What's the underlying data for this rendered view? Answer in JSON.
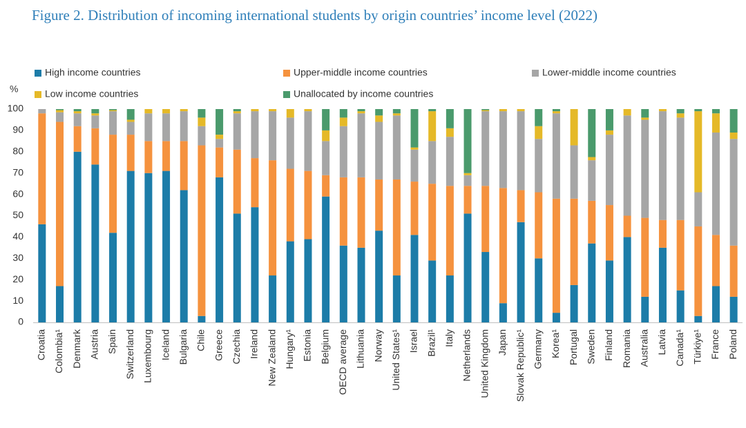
{
  "chart_data": {
    "type": "stacked_bar",
    "title": "Figure 2. Distribution of incoming international students by origin countries’ income level (2022)",
    "y_label": "%",
    "categories": [
      "Croatia",
      "Colombia¹",
      "Denmark",
      "Austria",
      "Spain",
      "Switzerland",
      "Luxembourg",
      "Iceland",
      "Bulgaria",
      "Chile",
      "Greece",
      "Czechia",
      "Ireland",
      "New Zealand",
      "Hungary¹",
      "Estonia",
      "Belgium",
      "OECD average",
      "Lithuania",
      "Norway",
      "United States¹",
      "Israel",
      "Brazil¹",
      "Italy",
      "Netherlands",
      "United Kingdom",
      "Japan",
      "Slovak Republic¹",
      "Germany",
      "Korea¹",
      "Portugal",
      "Sweden",
      "Finland",
      "Romania",
      "Australia",
      "Latvia",
      "Canada¹",
      "Türkiye¹",
      "France",
      "Poland"
    ],
    "series": [
      {
        "name": "High income countries",
        "color": "#1c7ca8",
        "values": [
          46,
          17,
          80,
          74,
          42,
          71,
          70,
          71,
          62,
          3,
          68,
          51,
          54,
          22,
          38,
          39,
          59,
          36,
          35,
          43,
          22,
          41,
          29,
          22,
          51,
          33,
          9,
          47,
          30,
          4.5,
          17.5,
          37,
          29,
          40,
          12,
          35,
          15,
          3,
          17,
          12
        ]
      },
      {
        "name": "Upper-middle income countries",
        "color": "#f5923e",
        "values": [
          52,
          77,
          12,
          17,
          46,
          17,
          15,
          14,
          23,
          80,
          14,
          30,
          23,
          54,
          34,
          32,
          10,
          32,
          33,
          24,
          45,
          25,
          36,
          42,
          13,
          31,
          54,
          15,
          31,
          53.5,
          40.5,
          20,
          26,
          10,
          37,
          13,
          33,
          42,
          24,
          24
        ]
      },
      {
        "name": "Lower-middle income countries",
        "color": "#a6a6a6",
        "values": [
          2,
          4.5,
          6,
          6,
          11,
          6,
          13,
          13,
          14,
          9,
          4,
          17,
          22,
          23,
          24,
          28,
          16,
          24,
          30,
          27,
          30,
          15,
          20,
          23,
          5,
          35,
          36,
          37,
          25,
          40,
          25,
          19,
          33,
          47,
          46,
          51,
          48,
          16,
          48,
          50
        ]
      },
      {
        "name": "Low income countries",
        "color": "#e5b928",
        "values": [
          0,
          1,
          1,
          1,
          0.5,
          1,
          2,
          2,
          1,
          4,
          2,
          1,
          1,
          1,
          4,
          1,
          5,
          4,
          1,
          3,
          1,
          1,
          14,
          4,
          1,
          0.5,
          1,
          1,
          6,
          1,
          17,
          1.5,
          2,
          3,
          1,
          1,
          2,
          38,
          9,
          3
        ]
      },
      {
        "name": "Unallocated by income countries",
        "color": "#4a9a6c",
        "values": [
          0,
          0.5,
          1,
          2,
          0.5,
          5,
          0,
          0,
          0,
          4,
          12,
          1,
          0,
          0,
          0,
          0,
          10,
          4,
          1,
          3,
          2,
          18,
          1,
          9,
          30,
          0.5,
          0,
          0,
          8,
          1,
          0,
          22.5,
          10,
          0,
          4,
          0,
          2,
          1,
          2,
          11
        ]
      }
    ],
    "ylim": [
      0,
      100
    ],
    "yticks": [
      0,
      10,
      20,
      30,
      40,
      50,
      60,
      70,
      80,
      90,
      100
    ]
  }
}
